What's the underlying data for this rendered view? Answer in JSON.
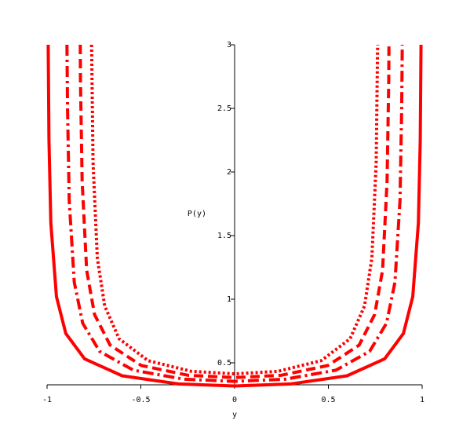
{
  "chart_data": {
    "type": "line",
    "x_label": "y",
    "y_label": "P(y)",
    "xlim": [
      -1,
      1
    ],
    "ylim": [
      0.327,
      3
    ],
    "xticks": [
      -1,
      -0.5,
      0,
      0.5,
      1
    ],
    "yticks": [
      0.5,
      1,
      1.5,
      2,
      2.5,
      3
    ],
    "series": [
      {
        "color": "#ff0000",
        "style": "solid",
        "x": [
          -0.994,
          -0.99,
          -0.98,
          -0.95,
          -0.9,
          -0.8,
          -0.6,
          -0.3,
          0,
          0.3,
          0.6,
          0.8,
          0.9,
          0.95,
          0.98,
          0.99,
          0.994
        ],
        "values": [
          3,
          2.256,
          1.6,
          1.02,
          0.73,
          0.531,
          0.398,
          0.334,
          0.318,
          0.334,
          0.398,
          0.531,
          0.73,
          1.02,
          1.6,
          2.256,
          3
        ]
      },
      {
        "color": "#ff0000",
        "style": "dashdot",
        "x": [
          -0.894,
          -0.891,
          -0.882,
          -0.855,
          -0.81,
          -0.72,
          -0.54,
          -0.27,
          0,
          0.27,
          0.54,
          0.72,
          0.81,
          0.855,
          0.882,
          0.891,
          0.894
        ],
        "values": [
          3,
          2.507,
          1.777,
          1.133,
          0.811,
          0.59,
          0.442,
          0.371,
          0.354,
          0.371,
          0.442,
          0.59,
          0.811,
          1.133,
          1.777,
          2.507,
          3
        ]
      },
      {
        "color": "#ff0000",
        "style": "dash",
        "x": [
          -0.823,
          -0.822,
          -0.813,
          -0.789,
          -0.747,
          -0.664,
          -0.498,
          -0.249,
          0,
          0.249,
          0.498,
          0.664,
          0.747,
          0.789,
          0.813,
          0.822,
          0.823
        ],
        "values": [
          3,
          2.718,
          1.927,
          1.228,
          0.88,
          0.639,
          0.479,
          0.402,
          0.384,
          0.402,
          0.479,
          0.639,
          0.88,
          1.228,
          1.927,
          2.718,
          3
        ]
      },
      {
        "color": "#ff0000",
        "style": "dot",
        "x": [
          -0.763,
          -0.762,
          -0.755,
          -0.732,
          -0.693,
          -0.616,
          -0.462,
          -0.231,
          0,
          0.231,
          0.462,
          0.616,
          0.693,
          0.732,
          0.755,
          0.762,
          0.763
        ],
        "values": [
          3,
          2.93,
          2.077,
          1.324,
          0.948,
          0.689,
          0.517,
          0.433,
          0.413,
          0.433,
          0.517,
          0.689,
          0.948,
          1.324,
          2.077,
          2.93,
          3
        ]
      }
    ]
  }
}
